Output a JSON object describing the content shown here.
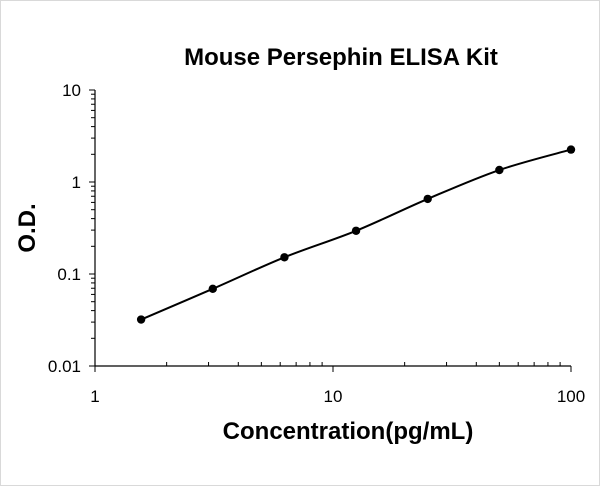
{
  "chart_data": {
    "type": "scatter",
    "title": "Mouse Persephin ELISA Kit",
    "xlabel": "Concentration(pg/mL)",
    "ylabel": "O.D.",
    "x_scale": "log",
    "y_scale": "log",
    "xlim": [
      1,
      100
    ],
    "ylim": [
      0.01,
      10
    ],
    "x_ticks": [
      "1",
      "10",
      "100"
    ],
    "y_ticks": [
      "10",
      "1",
      "0.1",
      "0.01"
    ],
    "grid": false,
    "legend": "none",
    "trendline": "smooth",
    "colors": {
      "marker": "#000000",
      "line": "#000000"
    },
    "points": [
      {
        "x": 1.5625,
        "y": 0.032
      },
      {
        "x": 3.125,
        "y": 0.069
      },
      {
        "x": 6.25,
        "y": 0.152
      },
      {
        "x": 12.5,
        "y": 0.295
      },
      {
        "x": 25,
        "y": 0.655
      },
      {
        "x": 50,
        "y": 1.35
      },
      {
        "x": 100,
        "y": 2.25
      }
    ]
  }
}
